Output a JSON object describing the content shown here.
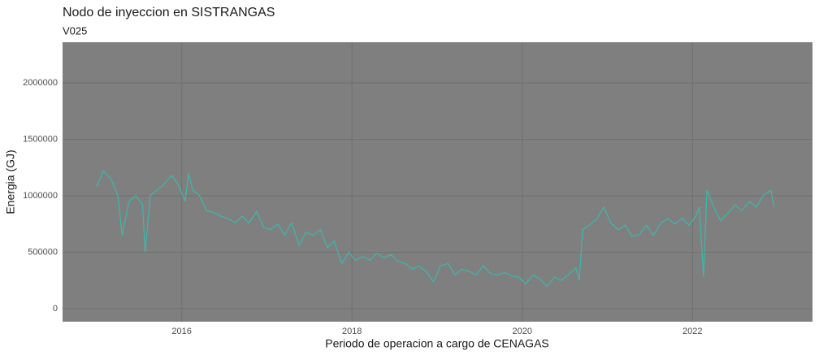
{
  "chart_data": {
    "type": "line",
    "title": "Nodo de inyeccion en SISTRANGAS",
    "subtitle": "V025",
    "x_label": "Periodo de operacion a cargo de CENAGAS",
    "y_label": "Energia (GJ)",
    "xlim": [
      2014.6,
      2023.41
    ],
    "ylim": [
      -115000,
      2360000
    ],
    "xticks": [
      2016,
      2018,
      2020,
      2022
    ],
    "yticks": [
      0,
      500000,
      1000000,
      1500000,
      2000000
    ],
    "grid": true,
    "background": "#7f7f7f",
    "grid_color": "#6f6f6f",
    "series": [
      {
        "color": "#3cb9ab",
        "x": [
          2015.0,
          2015.08,
          2015.17,
          2015.25,
          2015.3,
          2015.38,
          2015.46,
          2015.54,
          2015.57,
          2015.63,
          2015.71,
          2015.79,
          2015.88,
          2015.96,
          2016.04,
          2016.08,
          2016.13,
          2016.21,
          2016.29,
          2016.38,
          2016.46,
          2016.54,
          2016.63,
          2016.71,
          2016.79,
          2016.88,
          2016.96,
          2017.04,
          2017.13,
          2017.21,
          2017.29,
          2017.38,
          2017.46,
          2017.54,
          2017.63,
          2017.71,
          2017.79,
          2017.88,
          2017.96,
          2018.04,
          2018.13,
          2018.21,
          2018.29,
          2018.38,
          2018.46,
          2018.54,
          2018.63,
          2018.71,
          2018.79,
          2018.88,
          2018.96,
          2019.04,
          2019.13,
          2019.21,
          2019.29,
          2019.38,
          2019.46,
          2019.54,
          2019.63,
          2019.71,
          2019.79,
          2019.88,
          2019.96,
          2020.04,
          2020.13,
          2020.21,
          2020.29,
          2020.38,
          2020.46,
          2020.54,
          2020.63,
          2020.67,
          2020.71,
          2020.79,
          2020.88,
          2020.96,
          2021.04,
          2021.13,
          2021.21,
          2021.29,
          2021.38,
          2021.46,
          2021.54,
          2021.63,
          2021.71,
          2021.79,
          2021.88,
          2021.96,
          2022.04,
          2022.08,
          2022.13,
          2022.17,
          2022.25,
          2022.33,
          2022.42,
          2022.5,
          2022.58,
          2022.67,
          2022.75,
          2022.83,
          2022.92,
          2022.96
        ],
        "values": [
          1080000,
          1220000,
          1150000,
          1000000,
          650000,
          950000,
          1000000,
          920000,
          500000,
          1000000,
          1050000,
          1100000,
          1180000,
          1100000,
          950000,
          1200000,
          1050000,
          1000000,
          870000,
          850000,
          820000,
          800000,
          760000,
          820000,
          760000,
          860000,
          720000,
          700000,
          750000,
          650000,
          760000,
          560000,
          680000,
          650000,
          700000,
          540000,
          600000,
          400000,
          500000,
          430000,
          460000,
          430000,
          490000,
          450000,
          480000,
          420000,
          400000,
          350000,
          380000,
          320000,
          240000,
          380000,
          400000,
          300000,
          350000,
          330000,
          300000,
          380000,
          310000,
          300000,
          320000,
          290000,
          280000,
          220000,
          300000,
          260000,
          200000,
          280000,
          250000,
          300000,
          360000,
          250000,
          700000,
          740000,
          800000,
          900000,
          760000,
          700000,
          740000,
          640000,
          660000,
          740000,
          650000,
          760000,
          800000,
          750000,
          800000,
          740000,
          820000,
          900000,
          280000,
          1050000,
          900000,
          780000,
          850000,
          920000,
          870000,
          950000,
          900000,
          1000000,
          1050000,
          900000
        ]
      }
    ]
  }
}
